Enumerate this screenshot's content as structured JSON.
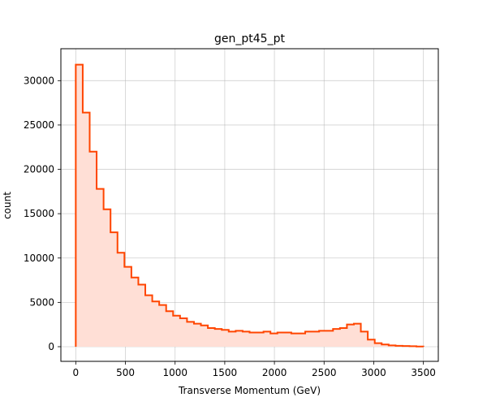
{
  "chart_data": {
    "type": "histogram",
    "title": "gen_pt45_pt",
    "xlabel": "Transverse Momentum (GeV)",
    "ylabel": "count",
    "xlim": [
      -150,
      3650
    ],
    "ylim": [
      -1650,
      33600
    ],
    "xticks": [
      0,
      500,
      1000,
      1500,
      2000,
      2500,
      3000,
      3500
    ],
    "xtick_labels": [
      "0",
      "500",
      "1000",
      "1500",
      "2000",
      "2500",
      "3000",
      "3500"
    ],
    "yticks": [
      0,
      5000,
      10000,
      15000,
      20000,
      25000,
      30000
    ],
    "ytick_labels": [
      "0",
      "5000",
      "10000",
      "15000",
      "20000",
      "25000",
      "30000"
    ],
    "grid": true,
    "line_color": "#ff4500",
    "fill_color": "#ffdfd6",
    "bin_edges": [
      0,
      70,
      140,
      210,
      280,
      350,
      420,
      490,
      560,
      630,
      700,
      770,
      840,
      910,
      980,
      1050,
      1120,
      1190,
      1260,
      1330,
      1400,
      1470,
      1540,
      1610,
      1680,
      1750,
      1820,
      1890,
      1960,
      2030,
      2100,
      2170,
      2240,
      2310,
      2380,
      2450,
      2520,
      2590,
      2660,
      2730,
      2800,
      2870,
      2940,
      3010,
      3080,
      3150,
      3220,
      3290,
      3360,
      3430,
      3500
    ],
    "counts": [
      31800,
      26400,
      22000,
      17800,
      15500,
      12900,
      10600,
      9000,
      7800,
      7000,
      5800,
      5100,
      4700,
      4000,
      3500,
      3200,
      2800,
      2600,
      2400,
      2100,
      2000,
      1900,
      1700,
      1800,
      1700,
      1600,
      1600,
      1700,
      1500,
      1600,
      1600,
      1500,
      1500,
      1700,
      1700,
      1800,
      1800,
      2000,
      2100,
      2500,
      2600,
      1700,
      800,
      400,
      250,
      150,
      100,
      80,
      50,
      20
    ]
  }
}
